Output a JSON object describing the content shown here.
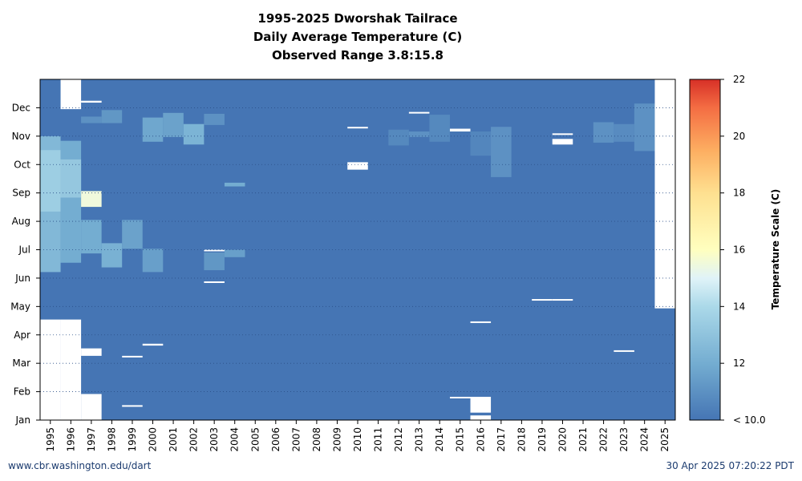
{
  "chart_data": {
    "type": "heatmap",
    "title": [
      "1995-2025 Dworshak Tailrace",
      "Daily Average Temperature (C)",
      "Observed Range 3.8:15.8"
    ],
    "x_categories": [
      "1995",
      "1996",
      "1997",
      "1998",
      "1999",
      "2000",
      "2001",
      "2002",
      "2003",
      "2004",
      "2005",
      "2006",
      "2007",
      "2008",
      "2009",
      "2010",
      "2011",
      "2012",
      "2013",
      "2014",
      "2015",
      "2016",
      "2017",
      "2018",
      "2019",
      "2020",
      "2021",
      "2022",
      "2023",
      "2024",
      "2025"
    ],
    "y_ticks": [
      "Jan",
      "Feb",
      "Mar",
      "Apr",
      "May",
      "Jun",
      "Jul",
      "Aug",
      "Sep",
      "Oct",
      "Nov",
      "Dec"
    ],
    "y_range_day_of_year": [
      1,
      366
    ],
    "background_temperature": 10.0,
    "no_data_color": "#ffffff",
    "grid": "dotted horizontal at month boundaries",
    "colorbar": {
      "label": "Temperature Scale (C)",
      "range": [
        10,
        22
      ],
      "ticks": [
        "< 10.0",
        "12",
        "14",
        "16",
        "18",
        "20",
        "22"
      ],
      "stops": [
        {
          "t": 10,
          "color": "#4575b4"
        },
        {
          "t": 12,
          "color": "#74add1"
        },
        {
          "t": 14,
          "color": "#abd9e9"
        },
        {
          "t": 15,
          "color": "#e0f3f8"
        },
        {
          "t": 16,
          "color": "#ffffbf"
        },
        {
          "t": 18,
          "color": "#fee090"
        },
        {
          "t": 19.5,
          "color": "#fdae61"
        },
        {
          "t": 21,
          "color": "#f46d43"
        },
        {
          "t": 22,
          "color": "#d73027"
        }
      ]
    },
    "missing_ranges": [
      {
        "year": "1995",
        "start_day": 1,
        "end_day": 108
      },
      {
        "year": "1996",
        "start_day": 1,
        "end_day": 108
      },
      {
        "year": "1996",
        "start_day": 335,
        "end_day": 366
      },
      {
        "year": "1997",
        "start_day": 1,
        "end_day": 28
      },
      {
        "year": "1997",
        "start_day": 70,
        "end_day": 77
      },
      {
        "year": "1997",
        "start_day": 342,
        "end_day": 343
      },
      {
        "year": "1999",
        "start_day": 16,
        "end_day": 16
      },
      {
        "year": "1999",
        "start_day": 69,
        "end_day": 69
      },
      {
        "year": "2000",
        "start_day": 81,
        "end_day": 82
      },
      {
        "year": "2003",
        "start_day": 183,
        "end_day": 183
      },
      {
        "year": "2003",
        "start_day": 149,
        "end_day": 149
      },
      {
        "year": "2010",
        "start_day": 270,
        "end_day": 277
      },
      {
        "year": "2010",
        "start_day": 315,
        "end_day": 315
      },
      {
        "year": "2013",
        "start_day": 331,
        "end_day": 331
      },
      {
        "year": "2015",
        "start_day": 25,
        "end_day": 25
      },
      {
        "year": "2015",
        "start_day": 311,
        "end_day": 313
      },
      {
        "year": "2016",
        "start_day": 1,
        "end_day": 5
      },
      {
        "year": "2016",
        "start_day": 9,
        "end_day": 25
      },
      {
        "year": "2016",
        "start_day": 106,
        "end_day": 106
      },
      {
        "year": "2019",
        "start_day": 130,
        "end_day": 130
      },
      {
        "year": "2020",
        "start_day": 130,
        "end_day": 130
      },
      {
        "year": "2020",
        "start_day": 297,
        "end_day": 302
      },
      {
        "year": "2020",
        "start_day": 308,
        "end_day": 308
      },
      {
        "year": "2023",
        "start_day": 75,
        "end_day": 75
      },
      {
        "year": "2025",
        "start_day": 121,
        "end_day": 366
      }
    ],
    "warm_bands": [
      {
        "year": "1995",
        "start_day": 160,
        "end_day": 305,
        "temp": 12.5
      },
      {
        "year": "1995",
        "start_day": 225,
        "end_day": 290,
        "temp": 13.5
      },
      {
        "year": "1996",
        "start_day": 170,
        "end_day": 300,
        "temp": 12.0
      },
      {
        "year": "1996",
        "start_day": 240,
        "end_day": 280,
        "temp": 13.2
      },
      {
        "year": "1997",
        "start_day": 180,
        "end_day": 215,
        "temp": 12.0
      },
      {
        "year": "1997",
        "start_day": 230,
        "end_day": 246,
        "temp": 15.5
      },
      {
        "year": "1997",
        "start_day": 320,
        "end_day": 326,
        "temp": 11.0
      },
      {
        "year": "1998",
        "start_day": 165,
        "end_day": 190,
        "temp": 12.2
      },
      {
        "year": "1998",
        "start_day": 320,
        "end_day": 333,
        "temp": 11.2
      },
      {
        "year": "1999",
        "start_day": 185,
        "end_day": 215,
        "temp": 11.6
      },
      {
        "year": "2000",
        "start_day": 160,
        "end_day": 184,
        "temp": 11.5
      },
      {
        "year": "2000",
        "start_day": 300,
        "end_day": 325,
        "temp": 11.8
      },
      {
        "year": "2001",
        "start_day": 305,
        "end_day": 330,
        "temp": 11.6
      },
      {
        "year": "2002",
        "start_day": 297,
        "end_day": 318,
        "temp": 12.3
      },
      {
        "year": "2003",
        "start_day": 162,
        "end_day": 180,
        "temp": 11.2
      },
      {
        "year": "2003",
        "start_day": 318,
        "end_day": 329,
        "temp": 11.0
      },
      {
        "year": "2004",
        "start_day": 176,
        "end_day": 183,
        "temp": 11.5
      },
      {
        "year": "2004",
        "start_day": 252,
        "end_day": 255,
        "temp": 12.0
      },
      {
        "year": "2012",
        "start_day": 296,
        "end_day": 312,
        "temp": 10.7
      },
      {
        "year": "2013",
        "start_day": 305,
        "end_day": 310,
        "temp": 11.0
      },
      {
        "year": "2014",
        "start_day": 300,
        "end_day": 328,
        "temp": 10.7
      },
      {
        "year": "2016",
        "start_day": 285,
        "end_day": 310,
        "temp": 10.6
      },
      {
        "year": "2017",
        "start_day": 262,
        "end_day": 315,
        "temp": 11.0
      },
      {
        "year": "2022",
        "start_day": 299,
        "end_day": 320,
        "temp": 11.0
      },
      {
        "year": "2023",
        "start_day": 300,
        "end_day": 318,
        "temp": 10.8
      },
      {
        "year": "2024",
        "start_day": 290,
        "end_day": 340,
        "temp": 11.0
      }
    ]
  },
  "footer": {
    "source": "www.cbr.washington.edu/dart",
    "timestamp": "30 Apr 2025 07:20:22 PDT"
  }
}
